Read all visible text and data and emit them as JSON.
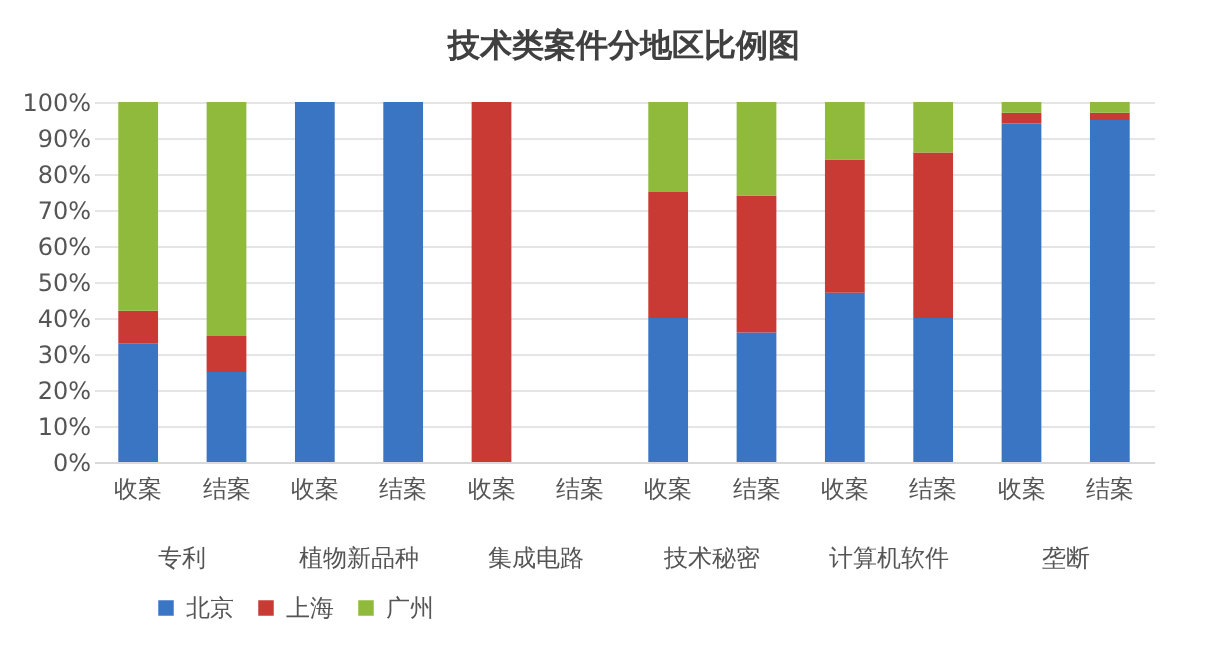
{
  "chart_data": {
    "type": "bar",
    "title": "技术类案件分地区比例图",
    "categories": [
      "收案",
      "结案",
      "收案",
      "结案",
      "收案",
      "结案",
      "收案",
      "结案",
      "收案",
      "结案",
      "收案",
      "结案"
    ],
    "annotations": [
      "专利",
      "植物新品种",
      "集成电路",
      "技术秘密",
      "计算机软件",
      "垄断"
    ],
    "stacked": true,
    "series": [
      {
        "name": "北京",
        "color": "#3a75c4",
        "values": [
          33,
          25,
          100,
          100,
          0,
          0,
          40,
          36,
          47,
          40,
          94,
          95
        ]
      },
      {
        "name": "上海",
        "color": "#c93a34",
        "values": [
          9,
          10,
          0,
          0,
          100,
          0,
          35,
          38,
          37,
          46,
          3,
          2
        ]
      },
      {
        "name": "广州",
        "color": "#8fba3c",
        "values": [
          58,
          65,
          0,
          0,
          0,
          0,
          25,
          26,
          16,
          14,
          3,
          3
        ]
      }
    ],
    "ylim": [
      0,
      100
    ],
    "yticks": [
      {
        "value": 0,
        "label": "0%"
      },
      {
        "value": 10,
        "label": "10%"
      },
      {
        "value": 20,
        "label": "20%"
      },
      {
        "value": 30,
        "label": "30%"
      },
      {
        "value": 40,
        "label": "40%"
      },
      {
        "value": 50,
        "label": "50%"
      },
      {
        "value": 60,
        "label": "60%"
      },
      {
        "value": 70,
        "label": "70%"
      },
      {
        "value": 80,
        "label": "80%"
      },
      {
        "value": 90,
        "label": "90%"
      },
      {
        "value": 100,
        "label": "100%"
      }
    ],
    "grid": "y",
    "legend": "bottom"
  }
}
